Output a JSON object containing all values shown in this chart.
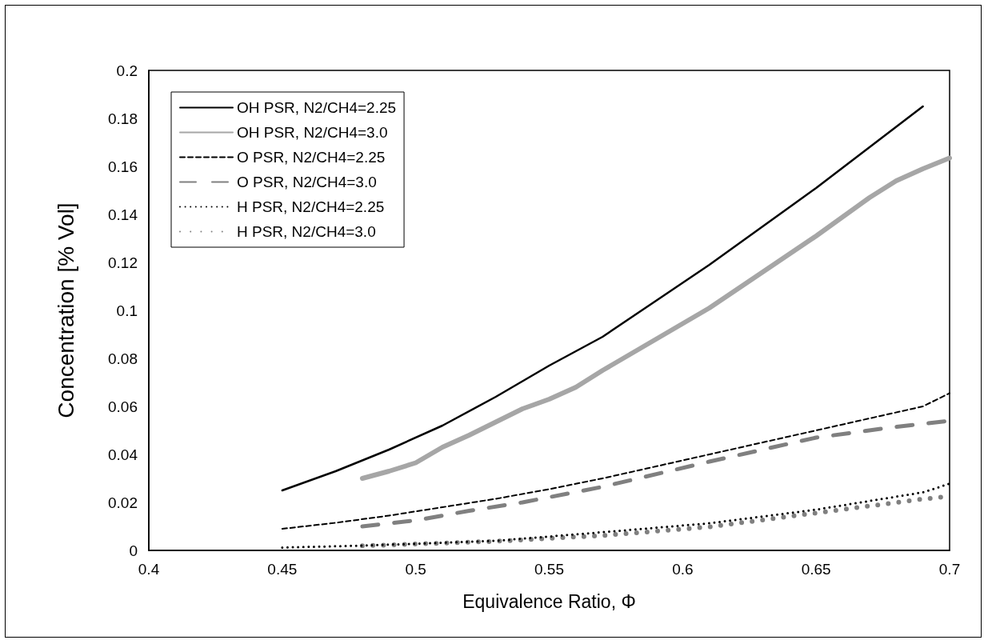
{
  "chart_data": {
    "type": "line",
    "xlabel": "Equivalence Ratio, Φ",
    "ylabel": "Concentration [% Vol]",
    "xlim": [
      0.4,
      0.7
    ],
    "xticks": [
      0.4,
      0.45,
      0.5,
      0.55,
      0.6,
      0.65,
      0.7
    ],
    "ylim": [
      0,
      0.2
    ],
    "yticks": [
      0,
      0.02,
      0.04,
      0.06,
      0.08,
      0.1,
      0.12,
      0.14,
      0.16,
      0.18,
      0.2
    ],
    "grid": false,
    "legend": "top left",
    "marker": "none",
    "series": [
      {
        "name": "OH PSR, N2/CH4=2.25",
        "color": "#000000",
        "line_style": "solid",
        "x": [
          0.45,
          0.47,
          0.49,
          0.51,
          0.53,
          0.55,
          0.57,
          0.59,
          0.61,
          0.63,
          0.65,
          0.67,
          0.69
        ],
        "values": [
          0.025,
          0.033,
          0.042,
          0.052,
          0.064,
          0.077,
          0.089,
          0.104,
          0.119,
          0.135,
          0.151,
          0.168,
          0.185
        ]
      },
      {
        "name": "OH PSR, N2/CH4=3.0",
        "color": "#a6a6a6",
        "line_style": "solid",
        "x": [
          0.48,
          0.49,
          0.5,
          0.51,
          0.52,
          0.53,
          0.54,
          0.55,
          0.56,
          0.57,
          0.59,
          0.61,
          0.63,
          0.65,
          0.67,
          0.68,
          0.69,
          0.7
        ],
        "values": [
          0.03,
          0.033,
          0.0365,
          0.043,
          0.048,
          0.0535,
          0.059,
          0.063,
          0.068,
          0.075,
          0.088,
          0.101,
          0.116,
          0.131,
          0.147,
          0.154,
          0.159,
          0.1635
        ]
      },
      {
        "name": "O PSR, N2/CH4=2.25",
        "color": "#000000",
        "line_style": "dashed",
        "x": [
          0.45,
          0.47,
          0.49,
          0.51,
          0.53,
          0.55,
          0.57,
          0.59,
          0.61,
          0.63,
          0.65,
          0.67,
          0.69,
          0.7
        ],
        "values": [
          0.009,
          0.0115,
          0.0145,
          0.018,
          0.0215,
          0.0255,
          0.03,
          0.035,
          0.04,
          0.045,
          0.05,
          0.055,
          0.06,
          0.0655
        ]
      },
      {
        "name": "O PSR, N2/CH4=3.0",
        "color": "#808080",
        "line_style": "dashed",
        "x": [
          0.48,
          0.5,
          0.52,
          0.54,
          0.57,
          0.61,
          0.65,
          0.68,
          0.7
        ],
        "values": [
          0.01,
          0.0125,
          0.0165,
          0.02,
          0.0265,
          0.037,
          0.047,
          0.0515,
          0.054
        ]
      },
      {
        "name": "H PSR, N2/CH4=2.25",
        "color": "#000000",
        "line_style": "dotted",
        "x": [
          0.45,
          0.48,
          0.53,
          0.57,
          0.61,
          0.65,
          0.69,
          0.7
        ],
        "values": [
          0.0012,
          0.002,
          0.004,
          0.0076,
          0.0113,
          0.017,
          0.0242,
          0.0278
        ]
      },
      {
        "name": "H PSR, N2/CH4=3.0",
        "color": "#808080",
        "line_style": "dotted",
        "x": [
          0.48,
          0.53,
          0.57,
          0.61,
          0.65,
          0.69,
          0.7
        ],
        "values": [
          0.0019,
          0.0038,
          0.0062,
          0.0098,
          0.0156,
          0.0214,
          0.0225
        ]
      }
    ]
  }
}
